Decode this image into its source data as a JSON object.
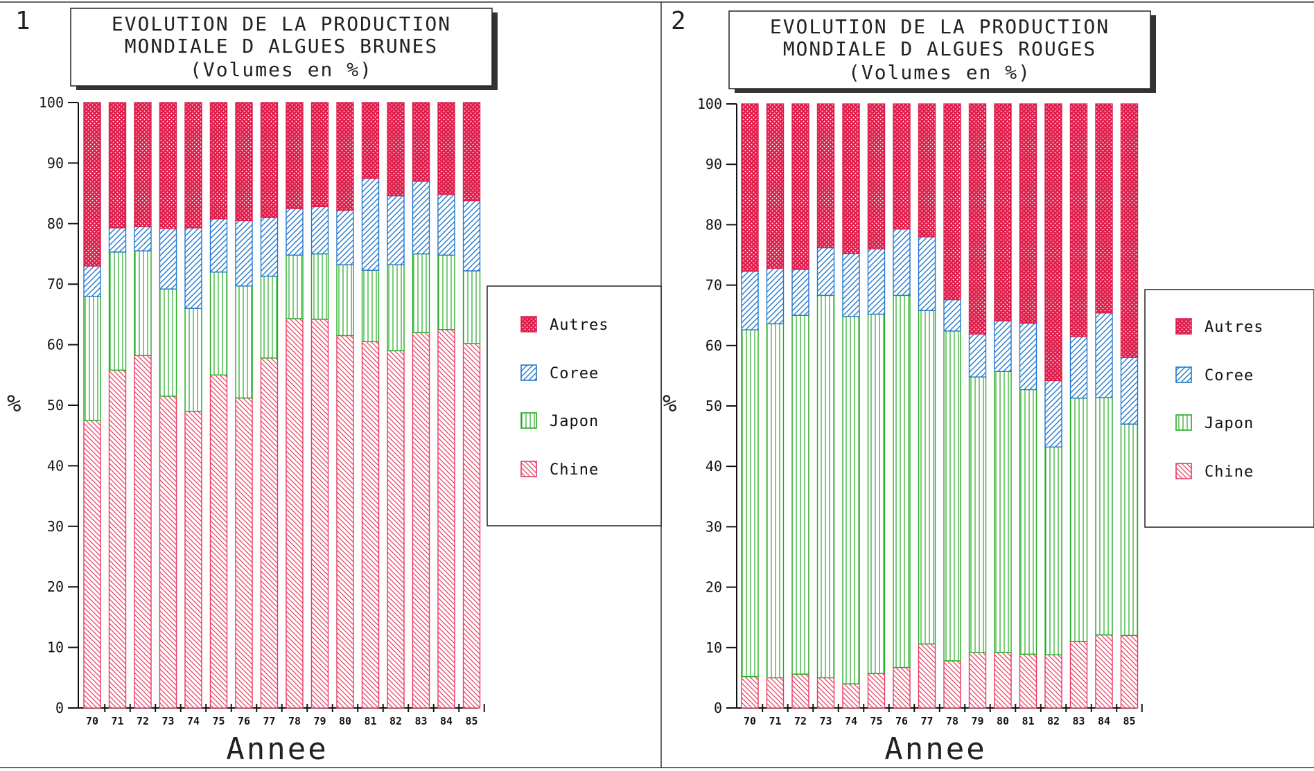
{
  "chart_data": [
    {
      "type": "bar",
      "stacked": true,
      "panel_number": "1",
      "title_lines": [
        "EVOLUTION DE LA PRODUCTION",
        "MONDIALE D ALGUES BRUNES",
        "(Volumes en %)"
      ],
      "xlabel": "Annee",
      "ylabel": "%",
      "ylim": [
        0,
        100
      ],
      "yticks": [
        0,
        10,
        20,
        30,
        40,
        50,
        60,
        70,
        80,
        90,
        100
      ],
      "categories": [
        "70",
        "71",
        "72",
        "73",
        "74",
        "75",
        "76",
        "77",
        "78",
        "79",
        "80",
        "81",
        "82",
        "83",
        "84",
        "85"
      ],
      "legend_placement": "right",
      "series": [
        {
          "name": "Chine",
          "values": [
            47.5,
            55.8,
            58.2,
            51.5,
            49.0,
            55.0,
            51.2,
            57.8,
            64.3,
            64.2,
            61.5,
            60.5,
            59.0,
            62.0,
            62.5,
            60.2
          ]
        },
        {
          "name": "Japon",
          "values": [
            20.5,
            19.5,
            17.3,
            17.7,
            17.0,
            17.0,
            18.5,
            13.5,
            10.5,
            10.8,
            11.7,
            11.8,
            14.2,
            13.0,
            12.3,
            12.0
          ]
        },
        {
          "name": "Coree",
          "values": [
            5.0,
            4.0,
            4.0,
            10.0,
            13.3,
            8.8,
            10.8,
            9.7,
            7.7,
            7.8,
            9.0,
            15.2,
            11.4,
            12.0,
            10.0,
            11.6
          ]
        },
        {
          "name": "Autres",
          "values": [
            27.0,
            20.7,
            20.5,
            20.8,
            20.7,
            19.2,
            19.5,
            19.0,
            17.5,
            17.2,
            17.8,
            12.5,
            15.4,
            13.0,
            15.2,
            16.2
          ]
        }
      ]
    },
    {
      "type": "bar",
      "stacked": true,
      "panel_number": "2",
      "title_lines": [
        "EVOLUTION DE LA PRODUCTION",
        "MONDIALE D ALGUES ROUGES",
        "(Volumes en %)"
      ],
      "xlabel": "Annee",
      "ylabel": "%",
      "ylim": [
        0,
        100
      ],
      "yticks": [
        0,
        10,
        20,
        30,
        40,
        50,
        60,
        70,
        80,
        90,
        100
      ],
      "categories": [
        "70",
        "71",
        "72",
        "73",
        "74",
        "75",
        "76",
        "77",
        "78",
        "79",
        "80",
        "81",
        "82",
        "83",
        "84",
        "85"
      ],
      "legend_placement": "right",
      "series": [
        {
          "name": "Chine",
          "values": [
            5.2,
            5.0,
            5.6,
            5.0,
            4.0,
            5.7,
            6.7,
            10.6,
            7.8,
            9.2,
            9.2,
            8.9,
            8.8,
            11.0,
            12.1,
            12.0
          ]
        },
        {
          "name": "Japon",
          "values": [
            57.4,
            58.6,
            59.4,
            63.3,
            60.8,
            59.5,
            61.6,
            55.2,
            54.6,
            45.6,
            46.5,
            43.8,
            34.4,
            40.3,
            39.3,
            35.0
          ]
        },
        {
          "name": "Coree",
          "values": [
            9.7,
            9.2,
            7.6,
            7.9,
            10.4,
            10.8,
            11.0,
            12.2,
            5.2,
            7.1,
            8.4,
            11.0,
            11.0,
            10.2,
            14.0,
            11.0
          ]
        },
        {
          "name": "Autres",
          "values": [
            27.7,
            27.2,
            27.4,
            23.8,
            24.8,
            24.0,
            20.7,
            22.0,
            32.4,
            38.1,
            35.9,
            36.3,
            45.8,
            38.5,
            34.6,
            42.0
          ]
        }
      ]
    }
  ],
  "series_colors": {
    "Chine": "#e83a5f",
    "Japon": "#22aa22",
    "Coree": "#2277cc",
    "Autres": "#e01e4c"
  }
}
